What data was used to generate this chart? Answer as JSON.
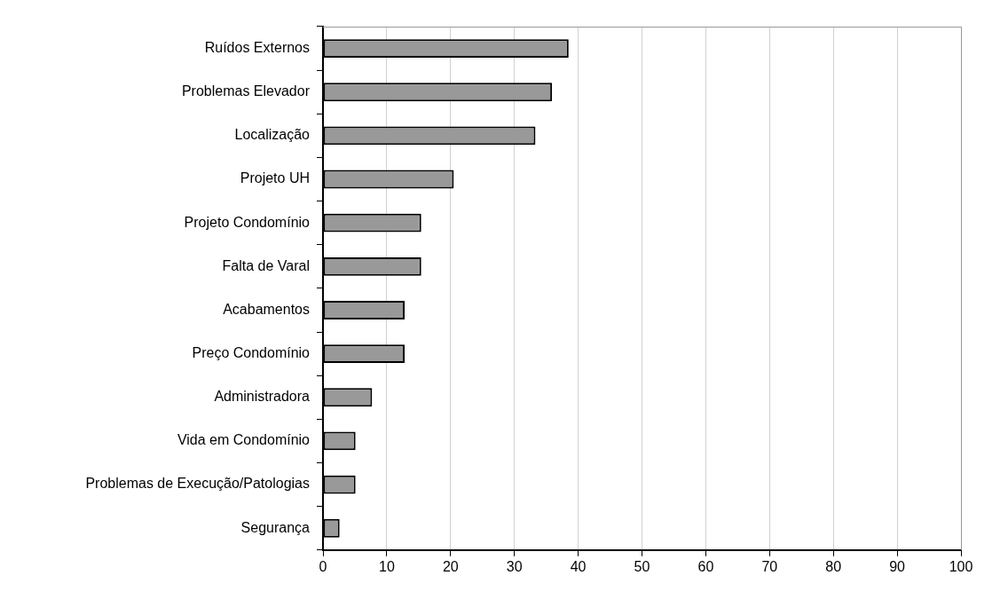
{
  "chart_data": {
    "type": "bar",
    "orientation": "horizontal",
    "categories": [
      "Ruídos Externos",
      "Problemas Elevador",
      "Localização",
      "Projeto UH",
      "Projeto Condomínio",
      "Falta de Varal",
      "Acabamentos",
      "Preço Condomínio",
      "Administradora",
      "Vida em Condomínio",
      "Problemas de Execução/Patologias",
      "Segurança"
    ],
    "values": [
      38.5,
      35.9,
      33.3,
      20.5,
      15.4,
      15.4,
      12.8,
      12.8,
      7.7,
      5.1,
      5.1,
      2.6
    ],
    "color": "#999999",
    "xlim": [
      0,
      100
    ],
    "xticks": [
      0,
      10,
      20,
      30,
      40,
      50,
      60,
      70,
      80,
      90,
      100
    ],
    "grid": "x",
    "legend": false
  }
}
